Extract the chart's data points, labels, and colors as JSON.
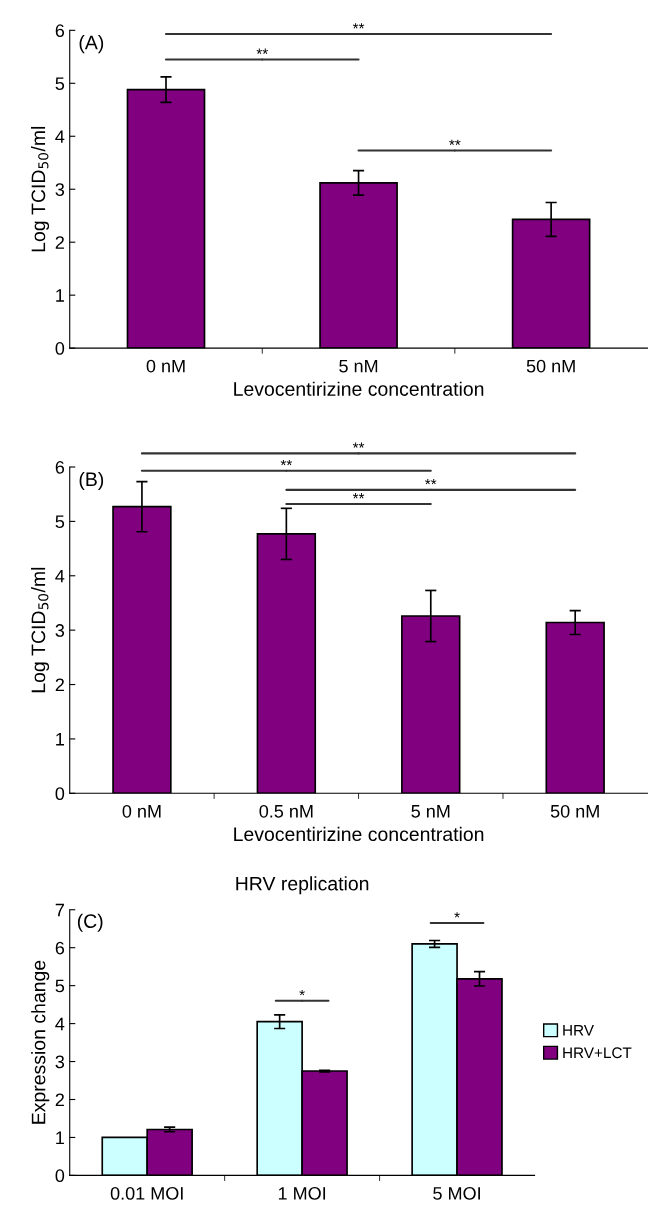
{
  "chart_data": [
    {
      "type": "bar",
      "categories": [
        "0 nM",
        "5 nM",
        "50 nM"
      ],
      "values": [
        4.88,
        3.12,
        2.43
      ],
      "errors": [
        0.24,
        0.23,
        0.32
      ],
      "color": "#800080",
      "xlabel": "Levocentirizine concentration",
      "ylabel": "Log TCID$_{50}$/ml",
      "ylim": [
        0,
        6
      ],
      "yticks": [
        0,
        1,
        2,
        3,
        4,
        5,
        6
      ],
      "grid": false,
      "legend": false,
      "annotations": [
        "(A)",
        "**",
        "**",
        "**"
      ]
    },
    {
      "type": "bar",
      "categories": [
        "0 nM",
        "0.5 nM",
        "5 nM",
        "50 nM"
      ],
      "values": [
        5.27,
        4.77,
        3.26,
        3.14
      ],
      "errors": [
        0.46,
        0.47,
        0.47,
        0.22
      ],
      "color": "#800080",
      "xlabel": "Levocentirizine concentration",
      "ylabel": "Log TCID$_{50}$/ml",
      "ylim": [
        0,
        6
      ],
      "yticks": [
        0,
        1,
        2,
        3,
        4,
        5,
        6
      ],
      "grid": false,
      "legend": false,
      "annotations": [
        "(B)",
        "**",
        "**",
        "**",
        "**"
      ]
    },
    {
      "type": "bar",
      "title": "HRV replication",
      "categories": [
        "0.01 MOI",
        "1 MOI",
        "5 MOI"
      ],
      "ylabel": "Expression change",
      "ylim": [
        0,
        7
      ],
      "yticks": [
        0,
        1,
        2,
        3,
        4,
        5,
        6,
        7
      ],
      "grid": false,
      "legend": "right",
      "series": [
        {
          "name": "HRV",
          "color": "#ccffff",
          "values": [
            1.0,
            4.05,
            6.1
          ],
          "errors": [
            null,
            0.18,
            0.09
          ]
        },
        {
          "name": "HRV+LCT",
          "color": "#800080",
          "values": [
            1.21,
            2.75,
            5.18
          ],
          "errors": [
            0.06,
            0.02,
            0.19
          ]
        }
      ],
      "annotations": [
        "(C)",
        "*",
        "*"
      ]
    }
  ]
}
